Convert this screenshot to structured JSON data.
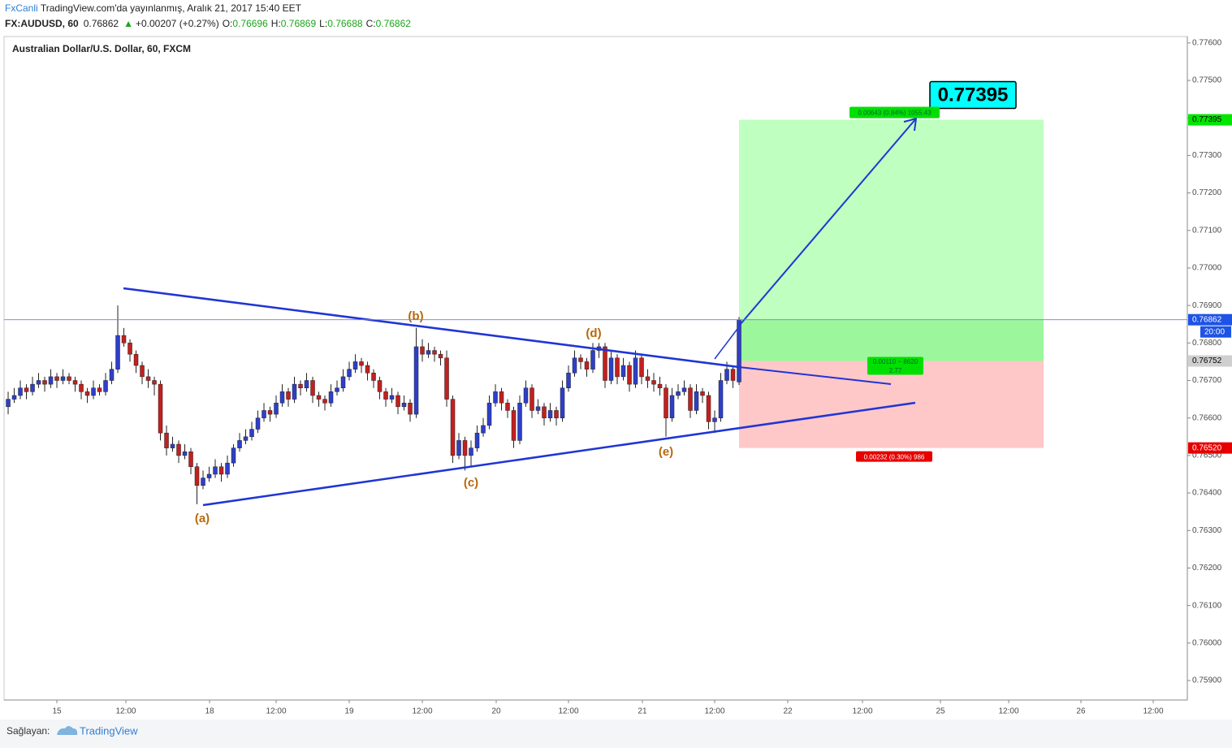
{
  "header": {
    "author": "FxCanli",
    "published": "TradingView.com'da yayınlanmış, Aralık 21, 2017 15:40 EET",
    "symbol": "FX:AUDUSD, 60",
    "arrow": "▲",
    "change": "+0.00207 (+0.27%)",
    "ohlc_labels": [
      "O:",
      "H:",
      "L:",
      "C:"
    ]
  },
  "footer": {
    "provider_label": "Sağlayan:",
    "provider": "TradingView"
  },
  "chart_data": {
    "type": "candlestick",
    "title": "Australian Dollar/U.S. Dollar, 60, FXCM",
    "up_color": "#2e3fc9",
    "down_color": "#c2201f",
    "line_color": "#1f35d6",
    "grid": false,
    "xlim": [
      -0.67,
      193.6
    ],
    "ylim": [
      0.75848,
      0.77617
    ],
    "xticks": [
      {
        "value": 8,
        "label": "15"
      },
      {
        "value": 19.33,
        "label": "12:00"
      },
      {
        "value": 33.07,
        "label": "18"
      },
      {
        "value": 44,
        "label": "12:00"
      },
      {
        "value": 56,
        "label": "19"
      },
      {
        "value": 68,
        "label": "12:00"
      },
      {
        "value": 80.13,
        "label": "20"
      },
      {
        "value": 92,
        "label": "12:00"
      },
      {
        "value": 104.13,
        "label": "21"
      },
      {
        "value": 116,
        "label": "12:00"
      },
      {
        "value": 128,
        "label": "22"
      },
      {
        "value": 140.27,
        "label": "12:00"
      },
      {
        "value": 153.07,
        "label": "25"
      },
      {
        "value": 164.27,
        "label": "12:00"
      },
      {
        "value": 176.13,
        "label": "26"
      },
      {
        "value": 188,
        "label": "12:00"
      }
    ],
    "yticks": [
      {
        "value": 0.759,
        "label": "0.75900"
      },
      {
        "value": 0.76,
        "label": "0.76000"
      },
      {
        "value": 0.761,
        "label": "0.76100"
      },
      {
        "value": 0.762,
        "label": "0.76200"
      },
      {
        "value": 0.763,
        "label": "0.76300"
      },
      {
        "value": 0.764,
        "label": "0.76400"
      },
      {
        "value": 0.765,
        "label": "0.76500"
      },
      {
        "value": 0.766,
        "label": "0.76600"
      },
      {
        "value": 0.767,
        "label": "0.76700"
      },
      {
        "value": 0.768,
        "label": "0.76800"
      },
      {
        "value": 0.769,
        "label": "0.76900"
      },
      {
        "value": 0.77,
        "label": "0.77000"
      },
      {
        "value": 0.771,
        "label": "0.77100"
      },
      {
        "value": 0.772,
        "label": "0.77200"
      },
      {
        "value": 0.773,
        "label": "0.77300"
      },
      {
        "value": 0.774,
        "label": "0.77400"
      },
      {
        "value": 0.775,
        "label": "0.77500"
      },
      {
        "value": 0.776,
        "label": "0.77600"
      }
    ],
    "candles": [
      [
        0.7663,
        0.7667,
        0.7661,
        0.7665
      ],
      [
        0.7665,
        0.7668,
        0.7664,
        0.7666
      ],
      [
        0.7666,
        0.767,
        0.7665,
        0.7668
      ],
      [
        0.7668,
        0.7669,
        0.7665,
        0.7667
      ],
      [
        0.7667,
        0.7671,
        0.7666,
        0.7669
      ],
      [
        0.7669,
        0.7672,
        0.7668,
        0.767
      ],
      [
        0.767,
        0.7671,
        0.7667,
        0.7669
      ],
      [
        0.7669,
        0.7673,
        0.7668,
        0.7671
      ],
      [
        0.7671,
        0.7672,
        0.7668,
        0.767
      ],
      [
        0.767,
        0.7673,
        0.7669,
        0.7671
      ],
      [
        0.7671,
        0.7672,
        0.7669,
        0.767
      ],
      [
        0.767,
        0.7671,
        0.7667,
        0.7669
      ],
      [
        0.7669,
        0.767,
        0.7665,
        0.7667
      ],
      [
        0.7667,
        0.7668,
        0.7664,
        0.7666
      ],
      [
        0.7666,
        0.767,
        0.7665,
        0.7668
      ],
      [
        0.7668,
        0.7669,
        0.7666,
        0.7667
      ],
      [
        0.7667,
        0.7672,
        0.7666,
        0.767
      ],
      [
        0.767,
        0.7675,
        0.7669,
        0.7673
      ],
      [
        0.7673,
        0.769,
        0.7672,
        0.7682
      ],
      [
        0.7682,
        0.7684,
        0.7679,
        0.768
      ],
      [
        0.768,
        0.7681,
        0.7675,
        0.7677
      ],
      [
        0.7677,
        0.7678,
        0.7672,
        0.7674
      ],
      [
        0.7674,
        0.7675,
        0.7669,
        0.7671
      ],
      [
        0.7671,
        0.7673,
        0.7668,
        0.767
      ],
      [
        0.767,
        0.7671,
        0.7666,
        0.7669
      ],
      [
        0.7669,
        0.767,
        0.7654,
        0.7656
      ],
      [
        0.7656,
        0.7658,
        0.765,
        0.7652
      ],
      [
        0.7652,
        0.7655,
        0.7651,
        0.7653
      ],
      [
        0.7653,
        0.7654,
        0.7648,
        0.765
      ],
      [
        0.765,
        0.7653,
        0.7649,
        0.7651
      ],
      [
        0.7651,
        0.7652,
        0.7645,
        0.7647
      ],
      [
        0.7647,
        0.7648,
        0.7637,
        0.7642
      ],
      [
        0.7642,
        0.7646,
        0.7641,
        0.7644
      ],
      [
        0.7644,
        0.7647,
        0.7643,
        0.7645
      ],
      [
        0.7645,
        0.7649,
        0.7644,
        0.7647
      ],
      [
        0.7647,
        0.7648,
        0.7643,
        0.7645
      ],
      [
        0.7645,
        0.765,
        0.7644,
        0.7648
      ],
      [
        0.7648,
        0.7653,
        0.7647,
        0.7652
      ],
      [
        0.7652,
        0.7656,
        0.7651,
        0.7654
      ],
      [
        0.7654,
        0.7657,
        0.7653,
        0.7655
      ],
      [
        0.7655,
        0.7659,
        0.7654,
        0.7657
      ],
      [
        0.7657,
        0.7662,
        0.7656,
        0.766
      ],
      [
        0.766,
        0.7664,
        0.7659,
        0.7662
      ],
      [
        0.7662,
        0.7663,
        0.7659,
        0.7661
      ],
      [
        0.7661,
        0.7666,
        0.766,
        0.7664
      ],
      [
        0.7664,
        0.7669,
        0.7663,
        0.7667
      ],
      [
        0.7667,
        0.7668,
        0.7663,
        0.7665
      ],
      [
        0.7665,
        0.7671,
        0.7664,
        0.7669
      ],
      [
        0.7669,
        0.767,
        0.7666,
        0.7668
      ],
      [
        0.7668,
        0.7672,
        0.7667,
        0.767
      ],
      [
        0.767,
        0.7671,
        0.7664,
        0.7666
      ],
      [
        0.7666,
        0.7667,
        0.7663,
        0.7665
      ],
      [
        0.7665,
        0.7666,
        0.7662,
        0.7664
      ],
      [
        0.7664,
        0.7669,
        0.7663,
        0.7667
      ],
      [
        0.7667,
        0.767,
        0.7666,
        0.7668
      ],
      [
        0.7668,
        0.7673,
        0.7667,
        0.7671
      ],
      [
        0.7671,
        0.7675,
        0.767,
        0.7673
      ],
      [
        0.7673,
        0.7677,
        0.7672,
        0.7675
      ],
      [
        0.7675,
        0.7676,
        0.7672,
        0.7674
      ],
      [
        0.7674,
        0.7675,
        0.767,
        0.7672
      ],
      [
        0.7672,
        0.7673,
        0.7668,
        0.767
      ],
      [
        0.767,
        0.7671,
        0.7665,
        0.7667
      ],
      [
        0.7667,
        0.7668,
        0.7663,
        0.7665
      ],
      [
        0.7665,
        0.7668,
        0.7664,
        0.7666
      ],
      [
        0.7666,
        0.7667,
        0.7661,
        0.7663
      ],
      [
        0.7663,
        0.7666,
        0.7662,
        0.7664
      ],
      [
        0.7664,
        0.7665,
        0.7659,
        0.7661
      ],
      [
        0.7661,
        0.7684,
        0.766,
        0.7679
      ],
      [
        0.7679,
        0.7681,
        0.7675,
        0.7677
      ],
      [
        0.7677,
        0.768,
        0.7676,
        0.7678
      ],
      [
        0.7678,
        0.7679,
        0.7675,
        0.7677
      ],
      [
        0.7677,
        0.7678,
        0.7674,
        0.7676
      ],
      [
        0.7676,
        0.7678,
        0.7663,
        0.7665
      ],
      [
        0.7665,
        0.7666,
        0.7648,
        0.765
      ],
      [
        0.765,
        0.7656,
        0.7649,
        0.7654
      ],
      [
        0.7654,
        0.7655,
        0.7646,
        0.765
      ],
      [
        0.765,
        0.7654,
        0.7647,
        0.7652
      ],
      [
        0.7652,
        0.7658,
        0.7651,
        0.7656
      ],
      [
        0.7656,
        0.766,
        0.7655,
        0.7658
      ],
      [
        0.7658,
        0.7666,
        0.7657,
        0.7664
      ],
      [
        0.7664,
        0.7669,
        0.7663,
        0.7667
      ],
      [
        0.7667,
        0.7668,
        0.7662,
        0.7664
      ],
      [
        0.7664,
        0.7665,
        0.766,
        0.7662
      ],
      [
        0.7662,
        0.7663,
        0.7652,
        0.7654
      ],
      [
        0.7654,
        0.7666,
        0.7653,
        0.7664
      ],
      [
        0.7664,
        0.767,
        0.7663,
        0.7668
      ],
      [
        0.7668,
        0.7669,
        0.766,
        0.7662
      ],
      [
        0.7662,
        0.7665,
        0.7661,
        0.7663
      ],
      [
        0.7663,
        0.7664,
        0.7658,
        0.766
      ],
      [
        0.766,
        0.7664,
        0.7659,
        0.7662
      ],
      [
        0.7662,
        0.7663,
        0.7658,
        0.766
      ],
      [
        0.766,
        0.767,
        0.7659,
        0.7668
      ],
      [
        0.7668,
        0.7674,
        0.7667,
        0.7672
      ],
      [
        0.7672,
        0.7678,
        0.7671,
        0.7676
      ],
      [
        0.7676,
        0.7677,
        0.7673,
        0.7675
      ],
      [
        0.7675,
        0.7676,
        0.7671,
        0.7673
      ],
      [
        0.7673,
        0.768,
        0.7672,
        0.7678
      ],
      [
        0.7678,
        0.768,
        0.7676,
        0.7679
      ],
      [
        0.7679,
        0.768,
        0.7668,
        0.767
      ],
      [
        0.767,
        0.7678,
        0.7669,
        0.7676
      ],
      [
        0.7676,
        0.7677,
        0.7669,
        0.7671
      ],
      [
        0.7671,
        0.7676,
        0.767,
        0.7674
      ],
      [
        0.7674,
        0.7675,
        0.7667,
        0.7669
      ],
      [
        0.7669,
        0.7678,
        0.7668,
        0.7676
      ],
      [
        0.7676,
        0.7677,
        0.7669,
        0.7671
      ],
      [
        0.7671,
        0.7673,
        0.7668,
        0.767
      ],
      [
        0.767,
        0.7672,
        0.7667,
        0.7669
      ],
      [
        0.7669,
        0.7671,
        0.7666,
        0.7668
      ],
      [
        0.7668,
        0.7669,
        0.7655,
        0.766
      ],
      [
        0.766,
        0.7668,
        0.7659,
        0.7666
      ],
      [
        0.7666,
        0.7669,
        0.7665,
        0.7667
      ],
      [
        0.7667,
        0.767,
        0.7666,
        0.7668
      ],
      [
        0.7668,
        0.7669,
        0.766,
        0.7662
      ],
      [
        0.7662,
        0.7669,
        0.7661,
        0.7667
      ],
      [
        0.7667,
        0.7668,
        0.7664,
        0.7666
      ],
      [
        0.7666,
        0.7667,
        0.7657,
        0.7659
      ],
      [
        0.7659,
        0.7662,
        0.7656,
        0.766
      ],
      [
        0.766,
        0.7672,
        0.7659,
        0.767
      ],
      [
        0.767,
        0.7675,
        0.7669,
        0.7673
      ],
      [
        0.7673,
        0.7674,
        0.7668,
        0.767
      ],
      [
        0.76696,
        0.76869,
        0.76688,
        0.76862
      ]
    ],
    "current_time_label": "20:00",
    "position": {
      "target": 0.77395,
      "entry": 0.76752,
      "stop": {
        "value": 0.7652,
        "label": "0.76520"
      },
      "target_stats": "0.00643 (0.84%) 1055.43",
      "mid_stats": "0.00110 ~ 8620",
      "ratio": "2.77",
      "stop_stats": "0.00232 (0.30%) 986"
    },
    "waves": [
      "(a)",
      "(b)",
      "(c)",
      "(d)",
      "(e)"
    ]
  }
}
